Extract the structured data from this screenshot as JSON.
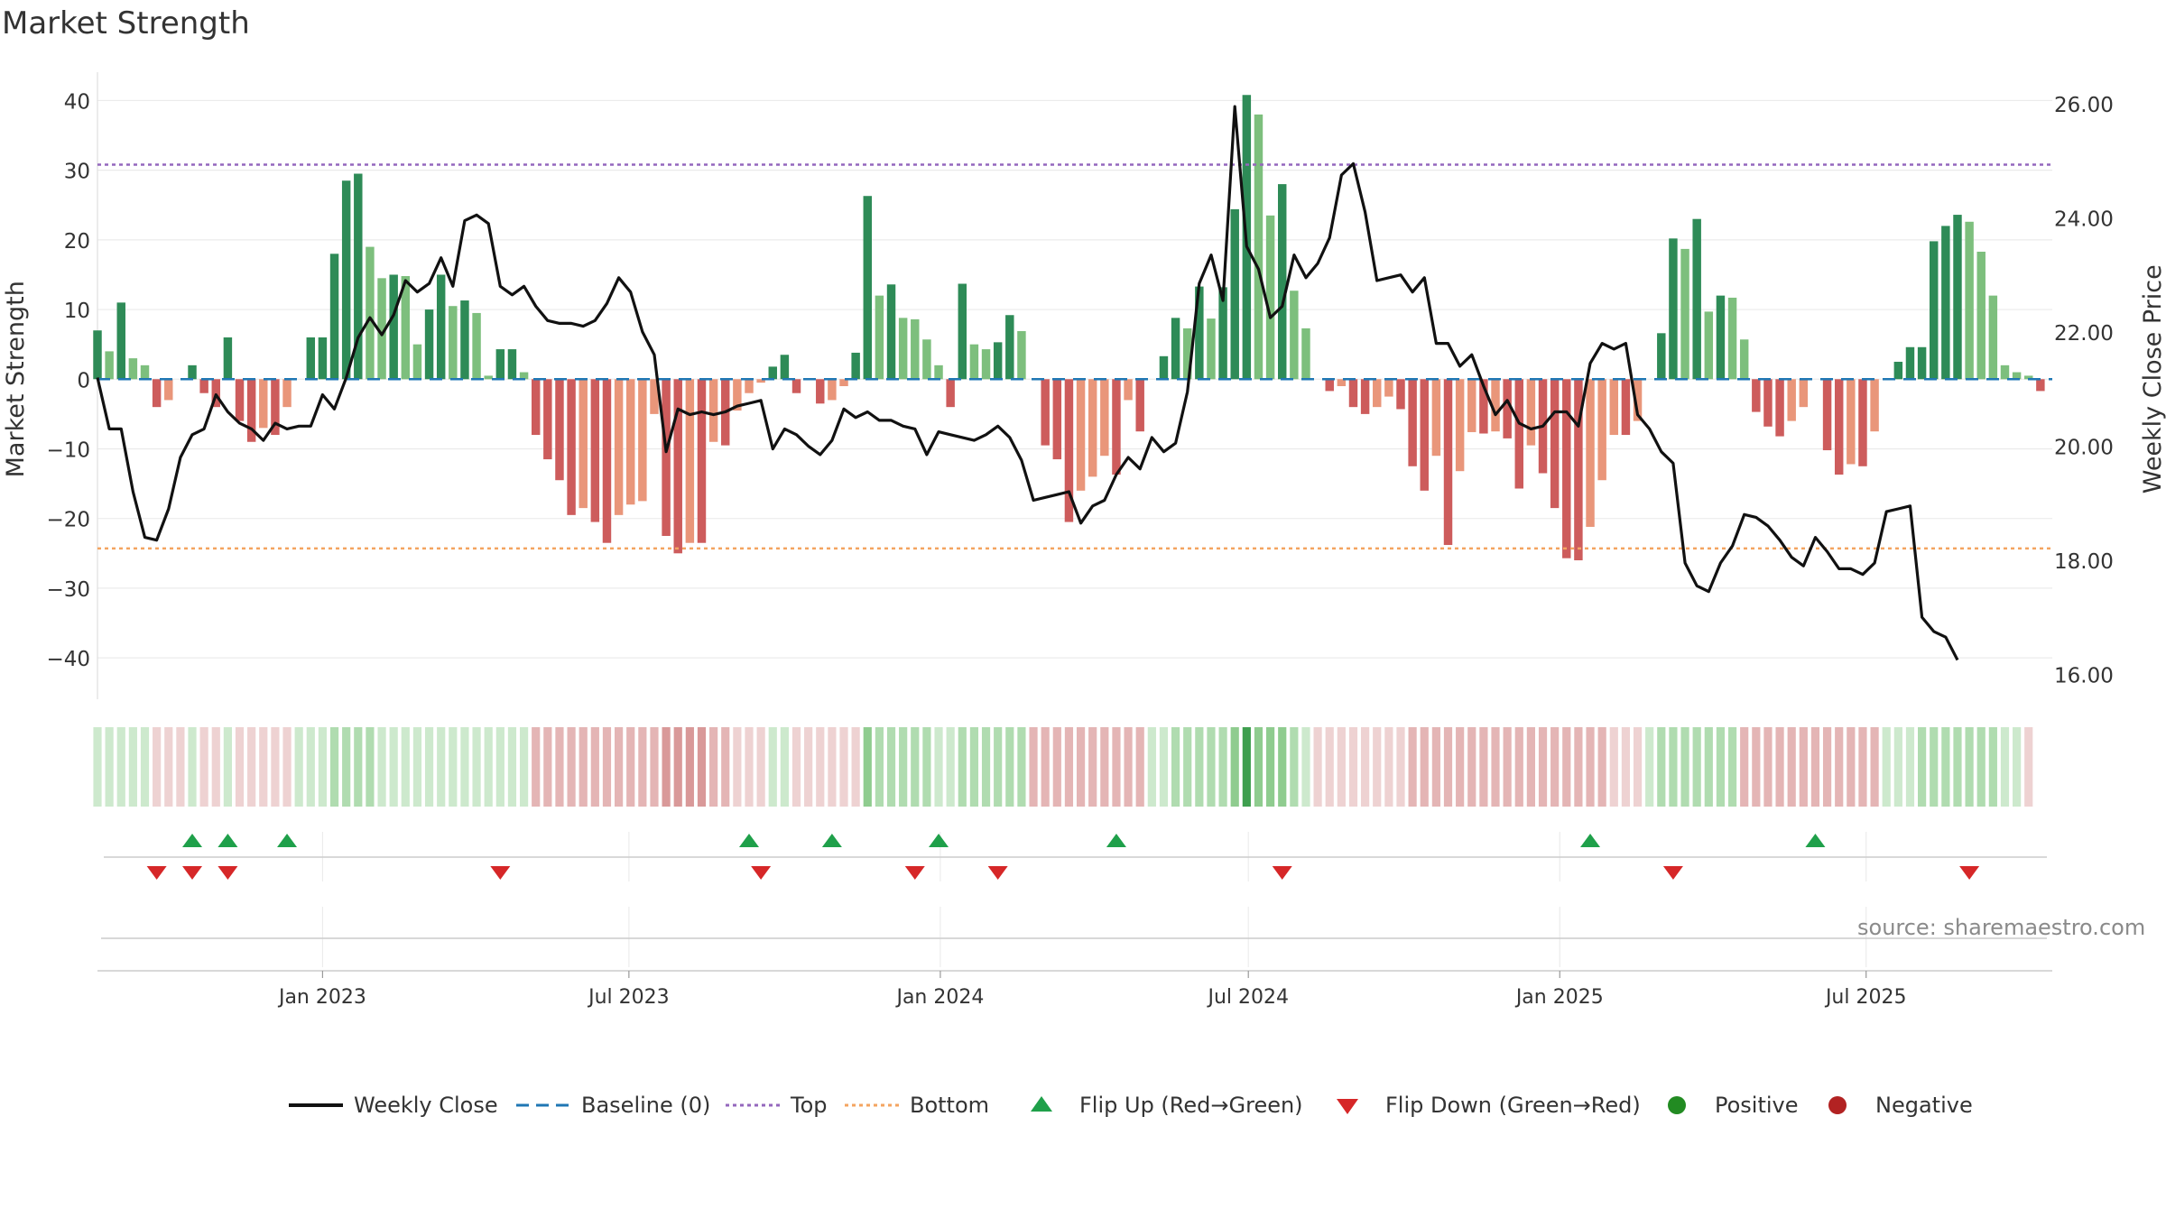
{
  "title": "Market Strength",
  "source_note": "source: sharemaestro.com",
  "chart_data": {
    "type": "bar",
    "title": "Market Strength",
    "ylabel": "Market Strength",
    "y2label": "Weekly Close Price",
    "ylim": [
      -44,
      42
    ],
    "y2lim": [
      15.8,
      26.3
    ],
    "y_ticks": [
      "40",
      "30",
      "20",
      "10",
      "0",
      "−10",
      "−20",
      "−30",
      "−40"
    ],
    "y_tick_values": [
      40,
      30,
      20,
      10,
      0,
      -10,
      -20,
      -30,
      -40
    ],
    "y2_ticks": [
      "26.00",
      "24.00",
      "22.00",
      "20.00",
      "18.00",
      "16.00"
    ],
    "y2_tick_values": [
      26,
      24,
      22,
      20,
      18,
      16
    ],
    "x_range": [
      "2022-08-21",
      "2025-10-19"
    ],
    "x_ticks": [
      "Jan 2023",
      "Jul 2023",
      "Jan 2024",
      "Jul 2024",
      "Jan 2025",
      "Jul 2025"
    ],
    "x_tick_dates": [
      "2023-01-01",
      "2023-07-01",
      "2024-01-01",
      "2024-07-01",
      "2025-01-01",
      "2025-07-01"
    ],
    "series_start_date": "2022-08-21",
    "series_interval": "weekly",
    "reference_lines": {
      "baseline": 0,
      "top": 30.8,
      "bottom": -24.3
    },
    "market_strength": [
      7,
      4,
      11,
      3,
      2,
      -4,
      -3,
      0,
      2,
      -2,
      -4,
      6,
      -6,
      -9,
      -7,
      -8,
      -4,
      0,
      6,
      6,
      18,
      28.5,
      29.5,
      19,
      14.5,
      15,
      14.8,
      5,
      10,
      15,
      10.5,
      11.3,
      9.5,
      0.5,
      4.3,
      4.3,
      1,
      -8,
      -11.5,
      -14.5,
      -19.5,
      -18.5,
      -20.5,
      -23.5,
      -19.5,
      -18,
      -17.5,
      -5,
      -22.5,
      -25,
      -23.5,
      -23.5,
      -9,
      -9.5,
      -4.5,
      -2,
      -0.5,
      1.8,
      3.5,
      -2,
      0,
      -3.5,
      -3,
      -1,
      3.8,
      26.3,
      12,
      13.6,
      8.8,
      8.6,
      5.7,
      2,
      -4,
      13.7,
      5,
      4.3,
      5.3,
      9.2,
      6.9,
      0,
      -9.5,
      -11.5,
      -20.5,
      -16,
      -14,
      -11,
      -13.7,
      -3,
      -7.5,
      0,
      3.3,
      8.8,
      7.3,
      13.3,
      8.7,
      13.2,
      24.4,
      40.8,
      38,
      23.5,
      28,
      12.7,
      7.3,
      0,
      -1.7,
      -1,
      -4,
      -5,
      -4,
      -2.5,
      -4.3,
      -12.5,
      -16,
      -11,
      -23.8,
      -13.2,
      -7.6,
      -7.8,
      -7.5,
      -8.5,
      -15.7,
      -9.5,
      -13.5,
      -18.5,
      -25.7,
      -26,
      -21.2,
      -14.5,
      -8,
      -8,
      -6,
      0,
      6.6,
      20.2,
      18.7,
      23,
      9.7,
      12,
      11.7,
      5.7,
      -4.7,
      -6.8,
      -8.2,
      -6,
      -4,
      0,
      -10.2,
      -13.7,
      -12.2,
      -12.5,
      -7.5,
      0,
      2.5,
      4.6,
      4.6,
      19.8,
      22,
      23.6,
      22.6,
      18.3,
      12,
      2,
      1,
      0.5,
      -1.7
    ],
    "weekly_close": [
      21.2,
      20.3,
      20.3,
      19.2,
      18.4,
      18.35,
      18.9,
      19.8,
      20.2,
      20.3,
      20.9,
      20.6,
      20.4,
      20.3,
      20.1,
      20.4,
      20.3,
      20.35,
      20.35,
      20.9,
      20.65,
      21.2,
      21.9,
      22.25,
      21.95,
      22.3,
      22.9,
      22.7,
      22.85,
      23.3,
      22.8,
      23.95,
      24.05,
      23.9,
      22.8,
      22.65,
      22.8,
      22.45,
      22.2,
      22.15,
      22.15,
      22.1,
      22.2,
      22.5,
      22.95,
      22.7,
      22.0,
      21.6,
      19.9,
      20.65,
      20.55,
      20.6,
      20.55,
      20.6,
      20.7,
      20.75,
      20.8,
      19.95,
      20.3,
      20.2,
      20.0,
      19.85,
      20.1,
      20.65,
      20.5,
      20.6,
      20.45,
      20.45,
      20.35,
      20.3,
      19.85,
      20.25,
      20.2,
      20.15,
      20.1,
      20.2,
      20.35,
      20.15,
      19.75,
      19.05,
      19.1,
      19.15,
      19.2,
      18.65,
      18.95,
      19.05,
      19.5,
      19.8,
      19.6,
      20.15,
      19.9,
      20.05,
      20.95,
      22.85,
      23.35,
      22.55,
      25.95,
      23.5,
      23.1,
      22.25,
      22.45,
      23.35,
      22.95,
      23.2,
      23.65,
      24.75,
      24.95,
      24.1,
      22.9,
      22.95,
      23.0,
      22.7,
      22.95,
      21.8,
      21.8,
      21.4,
      21.6,
      21.05,
      20.55,
      20.8,
      20.4,
      20.3,
      20.35,
      20.6,
      20.6,
      20.35,
      21.45,
      21.8,
      21.7,
      21.8,
      20.55,
      20.3,
      19.9,
      19.7,
      17.95,
      17.55,
      17.45,
      17.95,
      18.25,
      18.8,
      18.75,
      18.6,
      18.35,
      18.05,
      17.9,
      18.4,
      18.15,
      17.85,
      17.85,
      17.75,
      17.95,
      18.85,
      18.9,
      18.95,
      17.0,
      16.75,
      16.65,
      16.25
    ],
    "strength_band": [
      1,
      1,
      1,
      1,
      1,
      -1,
      -1,
      -1,
      1,
      -1,
      -1,
      1,
      -1,
      -1,
      -1,
      -1,
      -1,
      1,
      1,
      1,
      2,
      2,
      2,
      2,
      1,
      1,
      1,
      1,
      1,
      1,
      1,
      1,
      1,
      1,
      1,
      1,
      1,
      -2,
      -2,
      -2,
      -2,
      -2,
      -2,
      -2,
      -2,
      -2,
      -2,
      -2,
      -3,
      -3,
      -3,
      -3,
      -2,
      -2,
      -1,
      -1,
      -1,
      1,
      1,
      -1,
      -1,
      -1,
      -1,
      -1,
      -1,
      3,
      2,
      2,
      2,
      2,
      2,
      1,
      1,
      2,
      2,
      2,
      2,
      2,
      2,
      -2,
      -2,
      -2,
      -2,
      -2,
      -2,
      -2,
      -2,
      -2,
      -2,
      1,
      1,
      2,
      2,
      2,
      2,
      2,
      3,
      4,
      3,
      3,
      3,
      2,
      1,
      -1,
      -1,
      -1,
      -1,
      -1,
      -1,
      -1,
      -1,
      -2,
      -2,
      -2,
      -2,
      -2,
      -2,
      -2,
      -2,
      -2,
      -2,
      -2,
      -2,
      -2,
      -2,
      -2,
      -2,
      -2,
      -1,
      -1,
      -1,
      1,
      2,
      2,
      2,
      2,
      2,
      2,
      2,
      -2,
      -2,
      -2,
      -2,
      -2,
      -2,
      -2,
      -2,
      -2,
      -2,
      -2,
      -2,
      1,
      1,
      1,
      2,
      2,
      2,
      2,
      2,
      2,
      2,
      1,
      1,
      -1
    ],
    "flip_up_index": [
      8,
      11,
      16,
      55,
      62,
      71,
      86,
      126,
      145
    ],
    "flip_down_index": [
      5,
      8,
      11,
      34,
      56,
      69,
      76,
      100,
      133,
      158
    ],
    "legend": [
      "Weekly Close",
      "Baseline (0)",
      "Top",
      "Bottom",
      "Flip Up (Red→Green)",
      "Flip Down (Green→Red)",
      "Positive",
      "Negative"
    ],
    "colors": {
      "green_dark": "#2e8b57",
      "green_light": "#7dbf7d",
      "red_dark": "#cd5c5c",
      "red_light": "#e9967a",
      "close_line": "#111111",
      "baseline": "#1f77b4",
      "top": "#9467bd",
      "bottom": "#f4a460",
      "flip_up": "#1fa04a",
      "flip_down": "#d62728",
      "positive": "#228b22",
      "negative": "#b22222",
      "band_green": [
        "#cde9cd",
        "#b0dcb0",
        "#8fcc8f",
        "#6db86d",
        "#3f9f4f"
      ],
      "band_red": [
        "#eed2d2",
        "#e4b5b5",
        "#d99999",
        "#cc7c7c"
      ]
    }
  }
}
